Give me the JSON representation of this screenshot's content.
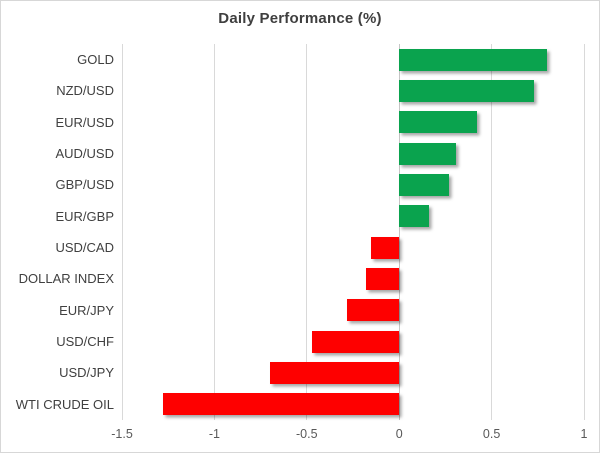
{
  "chart": {
    "title": "Daily Performance (%)"
  },
  "chart_data": {
    "type": "bar",
    "orientation": "horizontal",
    "title": "Daily Performance (%)",
    "categories": [
      "GOLD",
      "NZD/USD",
      "EUR/USD",
      "AUD/USD",
      "GBP/USD",
      "EUR/GBP",
      "USD/CAD",
      "DOLLAR INDEX",
      "EUR/JPY",
      "USD/CHF",
      "USD/JPY",
      "WTI CRUDE OIL"
    ],
    "values": [
      0.8,
      0.73,
      0.42,
      0.31,
      0.27,
      0.16,
      -0.15,
      -0.18,
      -0.28,
      -0.47,
      -0.7,
      -1.28
    ],
    "xlabel": "",
    "ylabel": "",
    "xlim": [
      -1.5,
      1
    ],
    "xticks": [
      -1.5,
      -1,
      -0.5,
      0,
      0.5,
      1
    ],
    "xtick_labels": [
      "-1.5",
      "-1",
      "-0.5",
      "0",
      "0.5",
      "1"
    ],
    "grid": true,
    "legend": false,
    "colors": {
      "positive": "#0aa34e",
      "negative": "#fe0000",
      "gridline": "#d9d9d9",
      "zero_line": "#c6c6c6",
      "title_text": "#3f3f3f",
      "category_text": "#404040",
      "tick_text": "#595959",
      "frame_border": "#d7d7d7"
    }
  }
}
